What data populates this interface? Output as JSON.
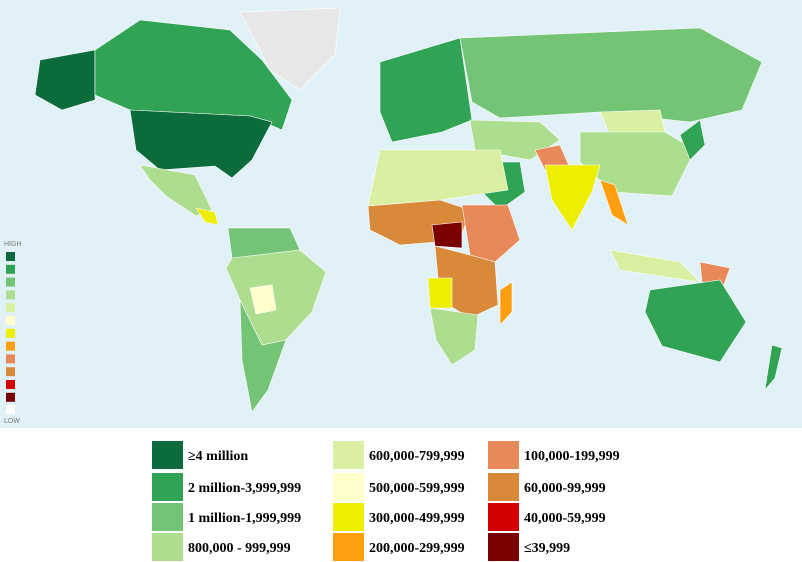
{
  "scale": {
    "high": "HIGH",
    "low": "LOW"
  },
  "legend": {
    "items": [
      {
        "label": "≥4 million",
        "color": "#0b6b3a"
      },
      {
        "label": "2 million-3,999,999",
        "color": "#31a354"
      },
      {
        "label": "1 million-1,999,999",
        "color": "#74c476"
      },
      {
        "label": "800,000 - 999,999",
        "color": "#addd8e"
      },
      {
        "label": "600,000-799,999",
        "color": "#d9f0a3"
      },
      {
        "label": "500,000-599,999",
        "color": "#ffffcc"
      },
      {
        "label": "300,000-499,999",
        "color": "#eeee00"
      },
      {
        "label": "200,000-299,999",
        "color": "#ff9f0f"
      },
      {
        "label": "100,000-199,999",
        "color": "#e8895a"
      },
      {
        "label": "60,000-99,999",
        "color": "#d8893a"
      },
      {
        "label": "40,000-59,999",
        "color": "#d40000"
      },
      {
        "label": "≤39,999",
        "color": "#7a0000"
      }
    ]
  }
}
